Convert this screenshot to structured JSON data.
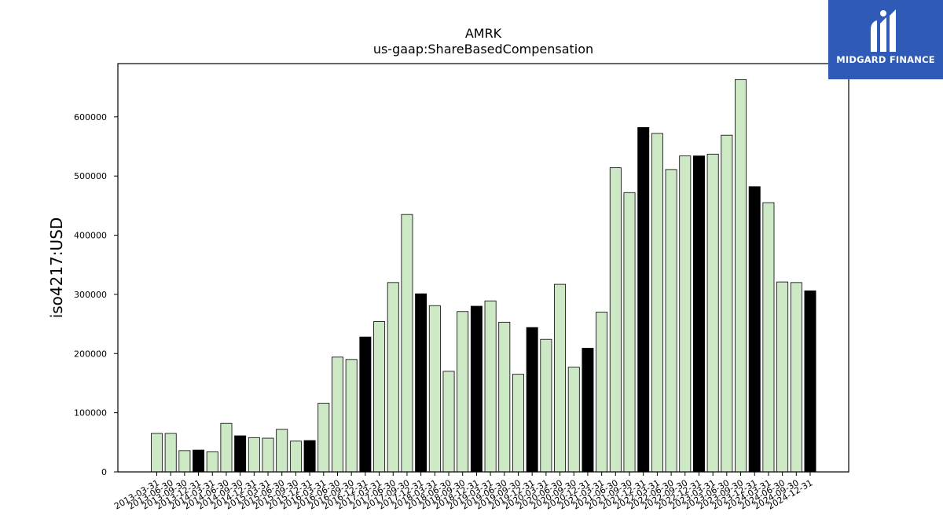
{
  "chart_data": {
    "type": "bar",
    "title": "AMRK",
    "subtitle": "us-gaap:ShareBasedCompensation",
    "ylabel": "iso4217:USD",
    "xlabel": "",
    "ylim": [
      0,
      690000
    ],
    "yticks": [
      0,
      100000,
      200000,
      300000,
      400000,
      500000,
      600000
    ],
    "categories": [
      "2013-03-31",
      "2013-06-30",
      "2013-09-30",
      "2013-12-31",
      "2014-03-31",
      "2014-06-30",
      "2014-09-30",
      "2014-12-31",
      "2015-03-31",
      "2015-06-30",
      "2015-09-30",
      "2015-12-31",
      "2016-03-31",
      "2016-06-30",
      "2016-09-30",
      "2016-12-31",
      "2017-03-31",
      "2017-06-30",
      "2017-09-30",
      "2017-12-31",
      "2018-03-31",
      "2018-06-30",
      "2018-09-30",
      "2018-12-31",
      "2019-03-31",
      "2019-06-30",
      "2019-09-30",
      "2019-12-31",
      "2020-03-31",
      "2020-06-30",
      "2020-09-30",
      "2020-12-31",
      "2021-03-31",
      "2021-06-30",
      "2021-09-30",
      "2021-12-31",
      "2022-03-31",
      "2022-06-30",
      "2022-09-30",
      "2022-12-31",
      "2023-03-31",
      "2023-06-30",
      "2023-09-30",
      "2023-12-31",
      "2024-03-31",
      "2024-06-30",
      "2024-09-30",
      "2024-12-31"
    ],
    "values": [
      65000,
      65000,
      36000,
      37000,
      34000,
      82000,
      61000,
      58000,
      57000,
      72000,
      52000,
      53000,
      116000,
      194000,
      190000,
      228000,
      254000,
      320000,
      435000,
      301000,
      281000,
      170000,
      271000,
      280000,
      289000,
      253000,
      165000,
      244000,
      224000,
      317000,
      177000,
      209000,
      270000,
      514000,
      472000,
      582000,
      572000,
      511000,
      534000,
      534000,
      537000,
      569000,
      663000,
      482000,
      455000,
      321000,
      320000,
      306000
    ],
    "highlighted": [
      false,
      false,
      false,
      true,
      false,
      false,
      true,
      false,
      false,
      false,
      false,
      true,
      false,
      false,
      false,
      true,
      false,
      false,
      false,
      true,
      false,
      false,
      false,
      true,
      false,
      false,
      false,
      true,
      false,
      false,
      false,
      true,
      false,
      false,
      false,
      true,
      false,
      false,
      false,
      true,
      false,
      false,
      false,
      true,
      false,
      false,
      false,
      true
    ],
    "colors": {
      "bar": "#cde8c5",
      "bar_highlight": "#000000",
      "edge": "#000000"
    },
    "grid": false,
    "legend": "none"
  },
  "logo": {
    "text": "MIDGARD FINANCE",
    "color": "#2f5bb7"
  }
}
